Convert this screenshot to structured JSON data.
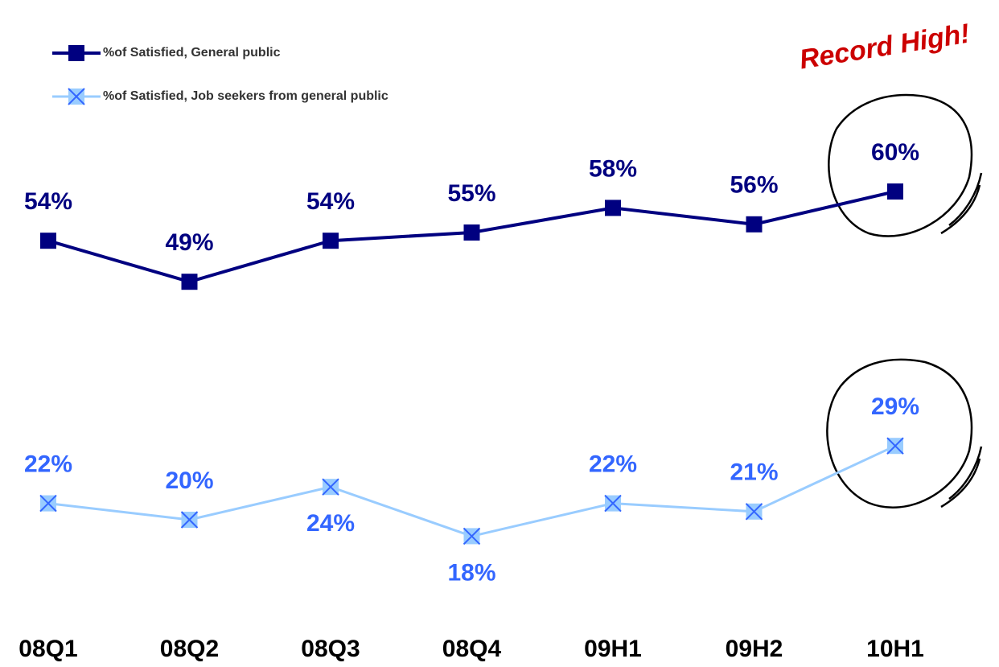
{
  "chart_data": {
    "type": "line",
    "categories": [
      "08Q1",
      "08Q2",
      "08Q3",
      "08Q4",
      "09H1",
      "09H2",
      "10H1"
    ],
    "series": [
      {
        "name": "%of Satisfied, General public",
        "color": "#000080",
        "label_color": "#000080",
        "values": [
          54,
          49,
          54,
          55,
          58,
          56,
          60
        ],
        "value_labels": [
          "54%",
          "49%",
          "54%",
          "55%",
          "58%",
          "56%",
          "60%"
        ]
      },
      {
        "name": "%of Satisfied, Job seekers from general public",
        "color": "#99ccff",
        "label_color": "#3366ff",
        "values": [
          22,
          20,
          24,
          18,
          22,
          21,
          29
        ],
        "value_labels": [
          "22%",
          "20%",
          "24%",
          "18%",
          "22%",
          "21%",
          "29%"
        ]
      }
    ],
    "ylim": [
      10,
      65
    ],
    "annotation": "Record High!",
    "annotation_color": "#cc0000"
  }
}
